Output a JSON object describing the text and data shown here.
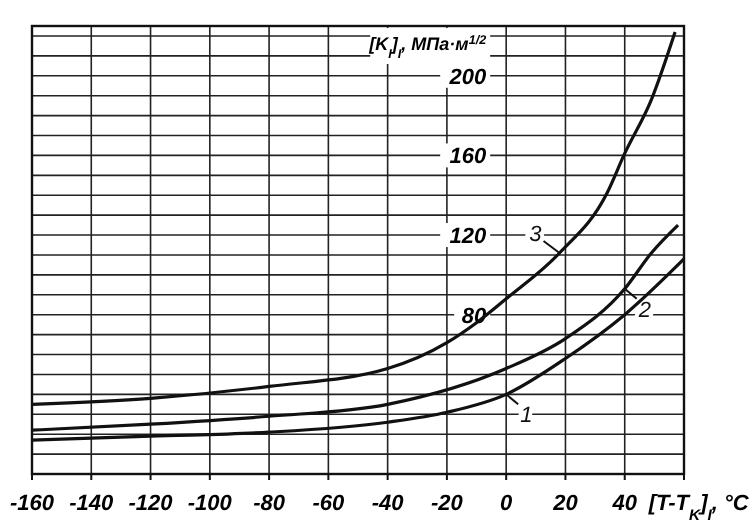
{
  "chart_data": {
    "type": "line",
    "xlabel": "[T-T$_{K}$]$_{I}$, °C",
    "ylabel": "[K$_{I}$]$_{I}$, МПа·м$^{1/2}$",
    "x": [
      -160,
      -120,
      -80,
      -40,
      -20,
      -10,
      0,
      18,
      34,
      40,
      49,
      57
    ],
    "series": [
      {
        "name": "3",
        "color": "#111111",
        "values": [
          35,
          38,
          44,
          53,
          66,
          76,
          88,
          111,
          141,
          161,
          188,
          222
        ]
      },
      {
        "name": "2",
        "color": "#111111",
        "x": [
          -160,
          -120,
          -80,
          -40,
          0,
          20,
          40,
          49,
          58
        ],
        "values": [
          22,
          25,
          29,
          35,
          53,
          68,
          93,
          111,
          125
        ]
      },
      {
        "name": "1",
        "color": "#111111",
        "x": [
          -160,
          -120,
          -80,
          -40,
          -20,
          0,
          20,
          40,
          60
        ],
        "values": [
          17,
          19,
          21,
          26,
          31,
          40,
          58,
          80,
          108
        ]
      }
    ],
    "xlim": [
      -160,
      60
    ],
    "xticks": [
      -160,
      -140,
      -120,
      -100,
      -80,
      -60,
      -40,
      -20,
      0,
      20,
      40,
      {
        "value": 60,
        "label": null
      }
    ],
    "ylim": [
      0,
      225
    ],
    "yticks": [
      {
        "value": 10,
        "label": null
      },
      {
        "value": 20,
        "label": null
      },
      {
        "value": 30,
        "label": null
      },
      {
        "value": 40,
        "label": null
      },
      {
        "value": 50,
        "label": null
      },
      {
        "value": 60,
        "label": null
      },
      {
        "value": 70,
        "label": null
      },
      80,
      {
        "value": 90,
        "label": null
      },
      {
        "value": 100,
        "label": null
      },
      {
        "value": 110,
        "label": null
      },
      120,
      {
        "value": 130,
        "label": null
      },
      {
        "value": 140,
        "label": null
      },
      {
        "value": 150,
        "label": null
      },
      160,
      {
        "value": 170,
        "label": null
      },
      {
        "value": 180,
        "label": null
      },
      {
        "value": 190,
        "label": null
      },
      200,
      {
        "value": 210,
        "label": null
      },
      {
        "value": 220,
        "label": null
      }
    ],
    "grid": true,
    "line_style": "solid",
    "marker": "none",
    "legend": "right"
  }
}
